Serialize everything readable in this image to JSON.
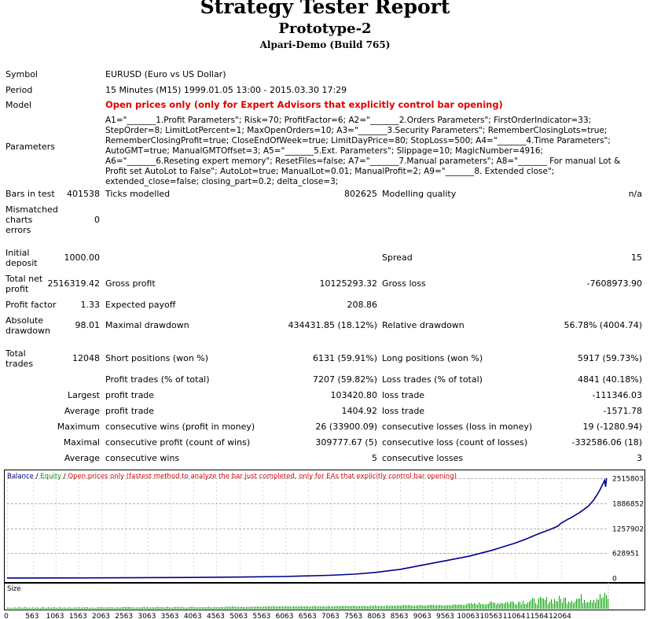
{
  "header": {
    "title": "Strategy Tester Report",
    "subtitle": "Prototype-2",
    "server": "Alpari-Demo (Build 765)"
  },
  "info": {
    "symbol_label": "Symbol",
    "symbol_value": "EURUSD (Euro vs US Dollar)",
    "period_label": "Period",
    "period_value": "15 Minutes (M15) 1999.01.05 13:00 - 2015.03.30 17:29",
    "model_label": "Model",
    "model_value": "Open prices only (only for Expert Advisors that explicitly control bar opening)",
    "parameters_label": "Parameters",
    "parameters_value": "A1=\"_______1.Profit Parameters\"; Risk=70; ProfitFactor=6; A2=\"_______2.Orders Parameters\"; FirstOrderIndicator=33; StepOrder=8; LimitLotPercent=1; MaxOpenOrders=10; A3=\"_______3.Security Parameters\"; RememberClosingLots=true; RememberClosingProfit=true; CloseEndOfWeek=true; LimitDayPrice=80; StopLoss=500; A4=\"_______4.Time Parameters\"; AutoGMT=true; ManualGMTOffset=3; A5=\"_______5.Ext. Parameters\"; Slippage=10; MagicNumber=4916; A6=\"_______6.Reseting expert memory\"; ResetFiles=false; A7=\"_______7.Manual parameters\"; A8=\"_______ For manual Lot & Profit set AutoLot to False\"; AutoLot=true; ManualLot=0.01; ManualProfit=2; A9=\"_______8. Extended close\"; extended_close=false; closing_part=0.2; delta_close=3;"
  },
  "stats": {
    "bars_label": "Bars in test",
    "bars_value": "401538",
    "ticks_label": "Ticks modelled",
    "ticks_value": "802625",
    "quality_label": "Modelling quality",
    "quality_value": "n/a",
    "mismatched_label_1": "Mismatched",
    "mismatched_label_2": "charts",
    "mismatched_label_3": "errors",
    "mismatched_value": "0",
    "deposit_label_1": "Initial",
    "deposit_label_2": "deposit",
    "deposit_value": "1000.00",
    "spread_label": "Spread",
    "spread_value": "15",
    "netprofit_label_1": "Total net",
    "netprofit_label_2": "profit",
    "netprofit_value": "2516319.42",
    "grossprofit_label": "Gross profit",
    "grossprofit_value": "10125293.32",
    "grossloss_label": "Gross loss",
    "grossloss_value": "-7608973.90",
    "pf_label": "Profit factor",
    "pf_value": "1.33",
    "payoff_label": "Expected payoff",
    "payoff_value": "208.86",
    "absdd_label_1": "Absolute",
    "absdd_label_2": "drawdown",
    "absdd_value": "98.01",
    "maxdd_label": "Maximal drawdown",
    "maxdd_value": "434431.85 (18.12%)",
    "reldd_label": "Relative drawdown",
    "reldd_value": "56.78% (4004.74)",
    "trades_label_1": "Total",
    "trades_label_2": "trades",
    "trades_value": "12048",
    "short_label": "Short positions (won %)",
    "short_value": "6131 (59.91%)",
    "long_label": "Long positions (won %)",
    "long_value": "5917 (59.73%)",
    "ptrades_label": "Profit trades (% of total)",
    "ptrades_value": "7207 (59.82%)",
    "ltrades_label": "Loss trades (% of total)",
    "ltrades_value": "4841 (40.18%)",
    "largest_label": "Largest",
    "largest_profit_label": "profit trade",
    "largest_profit_value": "103420.80",
    "largest_loss_label": "loss trade",
    "largest_loss_value": "-111346.03",
    "average_label": "Average",
    "average_profit_label": "profit trade",
    "average_profit_value": "1404.92",
    "average_loss_label": "loss trade",
    "average_loss_value": "-1571.78",
    "maximum_label": "Maximum",
    "max_wins_label": "consecutive wins (profit in money)",
    "max_wins_value": "26 (33900.09)",
    "max_losses_label": "consecutive losses (loss in money)",
    "max_losses_value": "19 (-1280.94)",
    "maximal_label": "Maximal",
    "maximal_profit_label": "consecutive profit (count of wins)",
    "maximal_profit_value": "309777.67 (5)",
    "maximal_loss_label": "consecutive loss (count of losses)",
    "maximal_loss_value": "-332586.06 (18)",
    "avg2_label": "Average",
    "avg_wins_label": "consecutive wins",
    "avg_wins_value": "5",
    "avg_losses_label": "consecutive losses",
    "avg_losses_value": "3"
  },
  "legend": {
    "balance": "Balance",
    "sep1": " / ",
    "equity": "Equity",
    "sep2": " / ",
    "model": "Open prices only (fastest method to analyze the bar just completed, only for EAs that explicitly control bar opening)"
  },
  "size_label": "Size",
  "colors": {
    "balance": "#00008b",
    "equity": "#00a000",
    "model": "#e00000",
    "size": "#00a000"
  },
  "chart_data": {
    "type": "line",
    "series": [
      {
        "name": "Balance",
        "x": [
          0,
          2000,
          4000,
          5000,
          6000,
          7000,
          7563,
          8000,
          8563,
          9063,
          9563,
          10063,
          10563,
          11064,
          11300,
          11564,
          11800,
          12000,
          12064,
          12200,
          12300,
          12400,
          12460,
          12520,
          12560,
          12600,
          12640,
          12680,
          12700,
          12720,
          12740,
          12760,
          12780,
          12800,
          12820,
          12840,
          12860,
          12880,
          12900,
          12920,
          12940,
          12960,
          12980,
          13000,
          13020,
          13040,
          13060
        ],
        "y": [
          1000,
          5000,
          15000,
          25000,
          40000,
          70000,
          100000,
          140000,
          220000,
          330000,
          440000,
          550000,
          700000,
          880000,
          980000,
          1110000,
          1210000,
          1310000,
          1380000,
          1470000,
          1530000,
          1600000,
          1640000,
          1690000,
          1720000,
          1760000,
          1790000,
          1830000,
          1860000,
          1880000,
          1910000,
          1940000,
          1970000,
          2000000,
          2040000,
          2070000,
          2110000,
          2150000,
          2190000,
          2230000,
          2280000,
          2320000,
          2370000,
          2420000,
          2460000,
          2300000,
          2516319
        ]
      }
    ],
    "y_ticks": [
      "0",
      "628951",
      "1257902",
      "1886852",
      "2515803"
    ],
    "x_ticks": [
      "0",
      "563",
      "1063",
      "1563",
      "2063",
      "2563",
      "3063",
      "3563",
      "4063",
      "4563",
      "5063",
      "5563",
      "6063",
      "6563",
      "7063",
      "7563",
      "8063",
      "8563",
      "9063",
      "9563",
      "10063",
      "10563",
      "11064",
      "11564",
      "12064"
    ],
    "ylim": [
      0,
      2516319
    ],
    "xlim": [
      0,
      13100
    ],
    "grid": true
  }
}
